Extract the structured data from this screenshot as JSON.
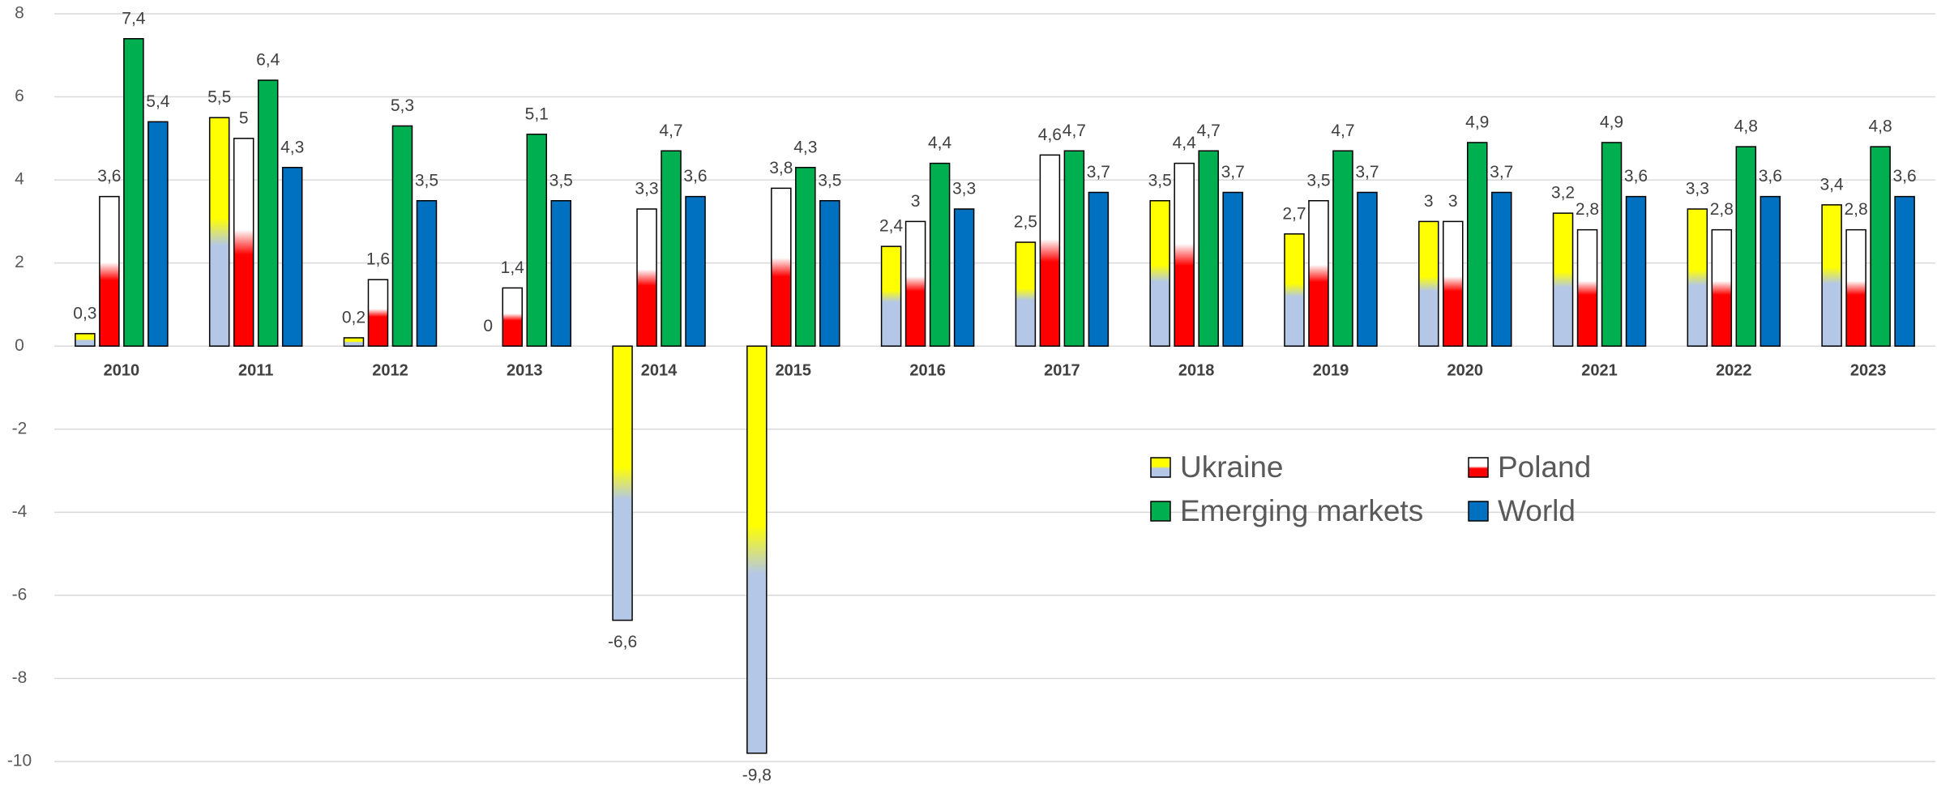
{
  "chart_data": {
    "type": "bar",
    "categories": [
      "2010",
      "2011",
      "2012",
      "2013",
      "2014",
      "2015",
      "2016",
      "2017",
      "2018",
      "2019",
      "2020",
      "2021",
      "2022",
      "2023"
    ],
    "series": [
      {
        "name": "Ukraine",
        "color": "#ffff00",
        "color2": "#b4c7e7",
        "values": [
          0.3,
          5.5,
          0.2,
          0,
          -6.6,
          -9.8,
          2.4,
          2.5,
          3.5,
          2.7,
          3,
          3.2,
          3.3,
          3.4
        ],
        "value_labels": [
          "0,3",
          "5,5",
          "0,2",
          "0",
          "-6,6",
          "-9,8",
          "2,4",
          "2,5",
          "3,5",
          "2,7",
          "3",
          "3,2",
          "3,3",
          "3,4"
        ]
      },
      {
        "name": "Poland",
        "color": "#ffffff",
        "color2": "#ff0000",
        "values": [
          3.6,
          5,
          1.6,
          1.4,
          3.3,
          3.8,
          3,
          4.6,
          4.4,
          3.5,
          3,
          2.8,
          2.8,
          2.8
        ],
        "value_labels": [
          "3,6",
          "5",
          "1,6",
          "1,4",
          "3,3",
          "3,8",
          "3",
          "4,6",
          "4,4",
          "3,5",
          "3",
          "2,8",
          "2,8",
          "2,8"
        ]
      },
      {
        "name": "Emerging markets",
        "color": "#00b050",
        "values": [
          7.4,
          6.4,
          5.3,
          5.1,
          4.7,
          4.3,
          4.4,
          4.7,
          4.7,
          4.7,
          4.9,
          4.9,
          4.8,
          4.8
        ],
        "value_labels": [
          "7,4",
          "6,4",
          "5,3",
          "5,1",
          "4,7",
          "4,3",
          "4,4",
          "4,7",
          "4,7",
          "4,7",
          "4,9",
          "4,9",
          "4,8",
          "4,8"
        ]
      },
      {
        "name": "World",
        "color": "#0070c0",
        "values": [
          5.4,
          4.3,
          3.5,
          3.5,
          3.6,
          3.5,
          3.3,
          3.7,
          3.7,
          3.7,
          3.7,
          3.6,
          3.6,
          3.6
        ],
        "value_labels": [
          "5,4",
          "4,3",
          "3,5",
          "3,5",
          "3,6",
          "3,5",
          "3,3",
          "3,7",
          "3,7",
          "3,7",
          "3,7",
          "3,6",
          "3,6",
          "3,6"
        ]
      }
    ],
    "ylim": [
      -10,
      8
    ],
    "yticks": [
      8,
      6,
      4,
      2,
      0,
      -2,
      -4,
      -6,
      -8,
      -10
    ],
    "grid": true,
    "legend": "center-right"
  }
}
